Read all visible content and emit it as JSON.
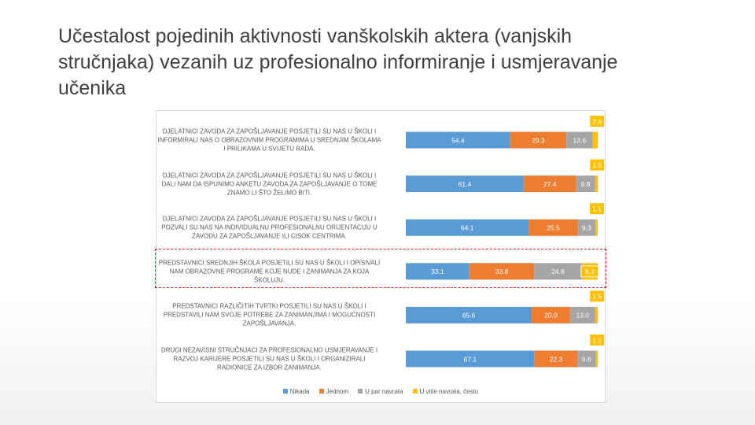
{
  "chart_data": {
    "type": "stacked-bar-horizontal",
    "title": "Učestalost pojedinih aktivnosti vanškolskih aktera (vanjskih stručnjaka) vezanih uz profesionalno informiranje i usmjeravanje učenika",
    "categories": [
      "DJELATNICI ZAVODA ZA ZAPOŠLJAVANJE POSJETILI SU NAS U ŠKOLI I INFORMIRALI NAS O OBRAZOVNIM PROGRAMIMA U SREDNJIM ŠKOLAMA I PRILIKAMA U SVIJETU RADA.",
      "DJELATNICI ZAVODA ZA ZAPOŠLJAVANJE POSJETILI SU NAS U ŠKOLI I DALI NAM DA ISPUNIMO ANKETU ZAVODA ZA ZAPOŠLJAVANJE O TOME ZNAMO LI ŠTO ŽELIMO BITI.",
      "DJELATNICI ZAVODA ZA ZAPOŠLJAVANJE POSJETILI SU NAS U ŠKOLI I POZVALI SU NAS NA INDIVIDUALNU PROFESIONALNU ORIJENTACIJU U ZAVODU ZA ZAPOŠLJAVANJE ILI CISOK CENTRIMA.",
      "PREDSTAVNICI SREDNJIH ŠKOLA POSJETILI SU NAS U ŠKOLI I OPISIVALI NAM OBRAZOVNE PROGRAME KOJE NUDE I ZANIMANJA ZA KOJA ŠKOLUJU.",
      "PREDSTAVNICI RAZLIČITIH TVRTKI POSJETILI SU NAS U ŠKOLI I PREDSTAVILI NAM SVOJE POTREBE ZA ZANIMANJIMA I MOGUĆNOSTI ZAPOŠLJAVANJA.",
      "DRUGI NEZAVISNI STRUČNJACI ZA PROFESIONALNO USMJERAVANJE I RAZVOJ KARIJERE POSJETILI SU NAS U ŠKOLI I ORGANIZIRALI RADIONICE ZA IZBOR ZANIMANJA."
    ],
    "series": [
      {
        "name": "Nikada",
        "color": "#5b9bd5",
        "values": [
          54.4,
          61.4,
          64.1,
          33.1,
          65.6,
          67.1
        ],
        "value_labels": [
          "54.4",
          "61.4",
          "64.1",
          "33.1",
          "65.6",
          "67.1"
        ]
      },
      {
        "name": "Jednom",
        "color": "#ed7d31",
        "values": [
          29.3,
          27.4,
          25.5,
          33.8,
          20,
          22.3
        ],
        "value_labels": [
          "29.3",
          "27.4",
          "25.5",
          "33.8",
          "20.0",
          "22.3"
        ]
      },
      {
        "name": "U par navrata",
        "color": "#a5a5a5",
        "values": [
          13.6,
          9.8,
          9.3,
          24.8,
          13,
          9.6
        ],
        "value_labels": [
          "13.6",
          "9.8",
          "9.3",
          "24.8",
          "13.0",
          "9.6"
        ]
      },
      {
        "name": "U više navrata, često",
        "color": "#ffc000",
        "values": [
          2.8,
          1.5,
          1.1,
          8.3,
          1.5,
          1.1
        ],
        "value_labels": [
          "2.8",
          "1.5",
          "1.1",
          "8.3",
          "1.5",
          "1.1"
        ]
      }
    ],
    "xlim": [
      0,
      100
    ]
  }
}
